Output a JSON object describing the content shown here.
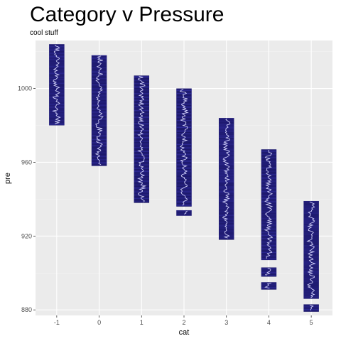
{
  "chart_data": {
    "type": "bar",
    "title": "Category v Pressure",
    "subtitle": "cool stuff",
    "xlabel": "cat",
    "ylabel": "pre",
    "categories": [
      "-1",
      "0",
      "1",
      "2",
      "3",
      "4",
      "5"
    ],
    "y_ticks": [
      880,
      920,
      960,
      1000
    ],
    "ylim": [
      877,
      1026
    ],
    "grid": true,
    "series": [
      {
        "category": "-1",
        "segments": [
          [
            980,
            1024
          ]
        ]
      },
      {
        "category": "0",
        "segments": [
          [
            958,
            1018
          ]
        ]
      },
      {
        "category": "1",
        "segments": [
          [
            938,
            1007
          ]
        ]
      },
      {
        "category": "2",
        "segments": [
          [
            931,
            934
          ],
          [
            936,
            1000
          ]
        ]
      },
      {
        "category": "3",
        "segments": [
          [
            918,
            984
          ]
        ]
      },
      {
        "category": "4",
        "segments": [
          [
            891,
            895
          ],
          [
            898,
            903
          ],
          [
            907,
            967
          ]
        ]
      },
      {
        "category": "5",
        "segments": [
          [
            879,
            883
          ],
          [
            886,
            939
          ]
        ]
      }
    ],
    "colors": {
      "panel": "#ebebeb",
      "grid_major": "#ffffff",
      "grid_minor": "#f4f4f4",
      "bar_fill": "#1c1869",
      "bar_stripe": "#3a36b5",
      "trace": "#d8d8ff",
      "tick": "#333333"
    }
  }
}
